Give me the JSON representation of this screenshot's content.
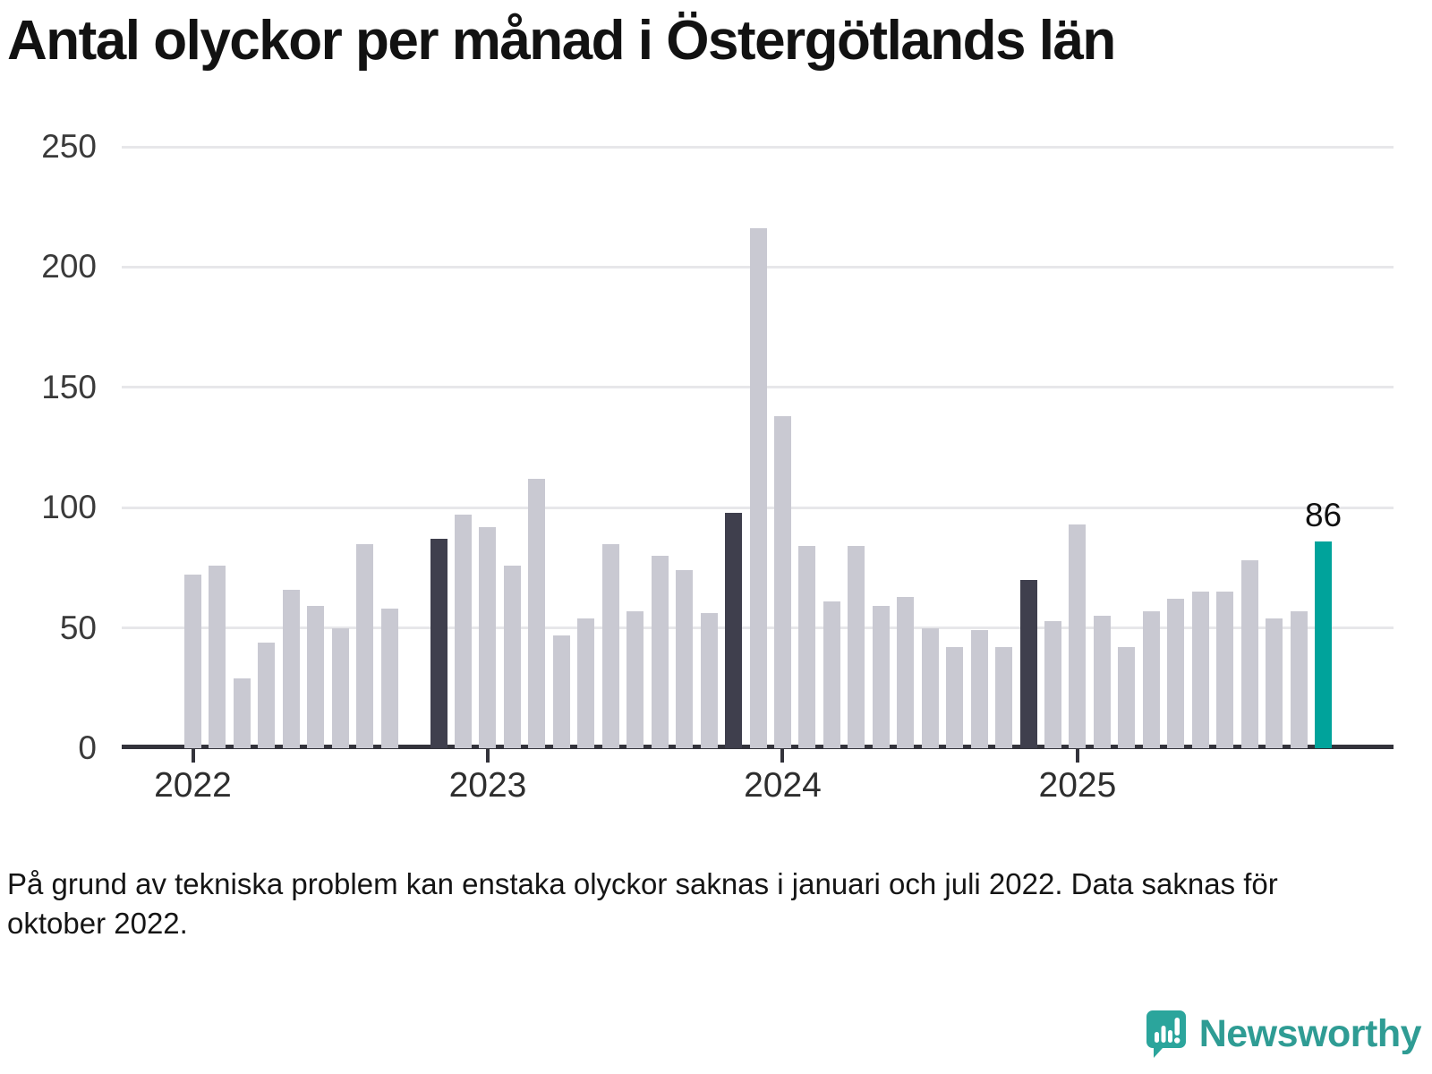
{
  "title": "Antal olyckor per månad i Östergötlands län",
  "footnote": {
    "line1": "På grund av tekniska problem kan enstaka olyckor saknas i januari och juli 2022. Data saknas för",
    "line2": "oktober 2022."
  },
  "logo": {
    "text": "Newsworthy",
    "icon": "newsworthy-speech-bubble-bar-chart-icon",
    "color": "#2f9c94"
  },
  "chart_data": {
    "type": "bar",
    "title": "Antal olyckor per månad i Östergötlands län",
    "ylim": [
      0,
      250
    ],
    "grid": "horizontal",
    "colors": {
      "normal": "#c9c9d2",
      "dark": "#3f3f4d",
      "highlight": "#00a39b",
      "gridline": "#e7e7ea",
      "axis": "#33333b"
    },
    "y_axis": {
      "ticks": [
        0,
        50,
        100,
        150,
        200,
        250
      ]
    },
    "x_axis": {
      "ticks": [
        {
          "label": "2022",
          "month_index": 0
        },
        {
          "label": "2023",
          "month_index": 12
        },
        {
          "label": "2024",
          "month_index": 24
        },
        {
          "label": "2025",
          "month_index": 36
        }
      ]
    },
    "series": [
      {
        "month": "2022-01",
        "value": 72,
        "type": "normal"
      },
      {
        "month": "2022-02",
        "value": 76,
        "type": "normal"
      },
      {
        "month": "2022-03",
        "value": 29,
        "type": "normal"
      },
      {
        "month": "2022-04",
        "value": 44,
        "type": "normal"
      },
      {
        "month": "2022-05",
        "value": 66,
        "type": "normal"
      },
      {
        "month": "2022-06",
        "value": 59,
        "type": "normal"
      },
      {
        "month": "2022-07",
        "value": 50,
        "type": "normal"
      },
      {
        "month": "2022-08",
        "value": 85,
        "type": "normal"
      },
      {
        "month": "2022-09",
        "value": 58,
        "type": "normal"
      },
      {
        "month": "2022-10",
        "value": null,
        "type": "missing"
      },
      {
        "month": "2022-11",
        "value": 87,
        "type": "dark"
      },
      {
        "month": "2022-12",
        "value": 97,
        "type": "normal"
      },
      {
        "month": "2023-01",
        "value": 92,
        "type": "normal"
      },
      {
        "month": "2023-02",
        "value": 76,
        "type": "normal"
      },
      {
        "month": "2023-03",
        "value": 112,
        "type": "normal"
      },
      {
        "month": "2023-04",
        "value": 47,
        "type": "normal"
      },
      {
        "month": "2023-05",
        "value": 54,
        "type": "normal"
      },
      {
        "month": "2023-06",
        "value": 85,
        "type": "normal"
      },
      {
        "month": "2023-07",
        "value": 57,
        "type": "normal"
      },
      {
        "month": "2023-08",
        "value": 80,
        "type": "normal"
      },
      {
        "month": "2023-09",
        "value": 74,
        "type": "normal"
      },
      {
        "month": "2023-10",
        "value": 56,
        "type": "normal"
      },
      {
        "month": "2023-11",
        "value": 98,
        "type": "dark"
      },
      {
        "month": "2023-12",
        "value": 216,
        "type": "normal"
      },
      {
        "month": "2024-01",
        "value": 138,
        "type": "normal"
      },
      {
        "month": "2024-02",
        "value": 84,
        "type": "normal"
      },
      {
        "month": "2024-03",
        "value": 61,
        "type": "normal"
      },
      {
        "month": "2024-04",
        "value": 84,
        "type": "normal"
      },
      {
        "month": "2024-05",
        "value": 59,
        "type": "normal"
      },
      {
        "month": "2024-06",
        "value": 63,
        "type": "normal"
      },
      {
        "month": "2024-07",
        "value": 50,
        "type": "normal"
      },
      {
        "month": "2024-08",
        "value": 42,
        "type": "normal"
      },
      {
        "month": "2024-09",
        "value": 49,
        "type": "normal"
      },
      {
        "month": "2024-10",
        "value": 42,
        "type": "normal"
      },
      {
        "month": "2024-11",
        "value": 70,
        "type": "dark"
      },
      {
        "month": "2024-12",
        "value": 53,
        "type": "normal"
      },
      {
        "month": "2025-01",
        "value": 93,
        "type": "normal"
      },
      {
        "month": "2025-02",
        "value": 55,
        "type": "normal"
      },
      {
        "month": "2025-03",
        "value": 42,
        "type": "normal"
      },
      {
        "month": "2025-04",
        "value": 57,
        "type": "normal"
      },
      {
        "month": "2025-05",
        "value": 62,
        "type": "normal"
      },
      {
        "month": "2025-06",
        "value": 65,
        "type": "normal"
      },
      {
        "month": "2025-07",
        "value": 65,
        "type": "normal"
      },
      {
        "month": "2025-08",
        "value": 78,
        "type": "normal"
      },
      {
        "month": "2025-09",
        "value": 54,
        "type": "normal"
      },
      {
        "month": "2025-10",
        "value": 57,
        "type": "normal"
      },
      {
        "month": "2025-11",
        "value": 86,
        "type": "highlight",
        "annotation": "86"
      }
    ]
  }
}
